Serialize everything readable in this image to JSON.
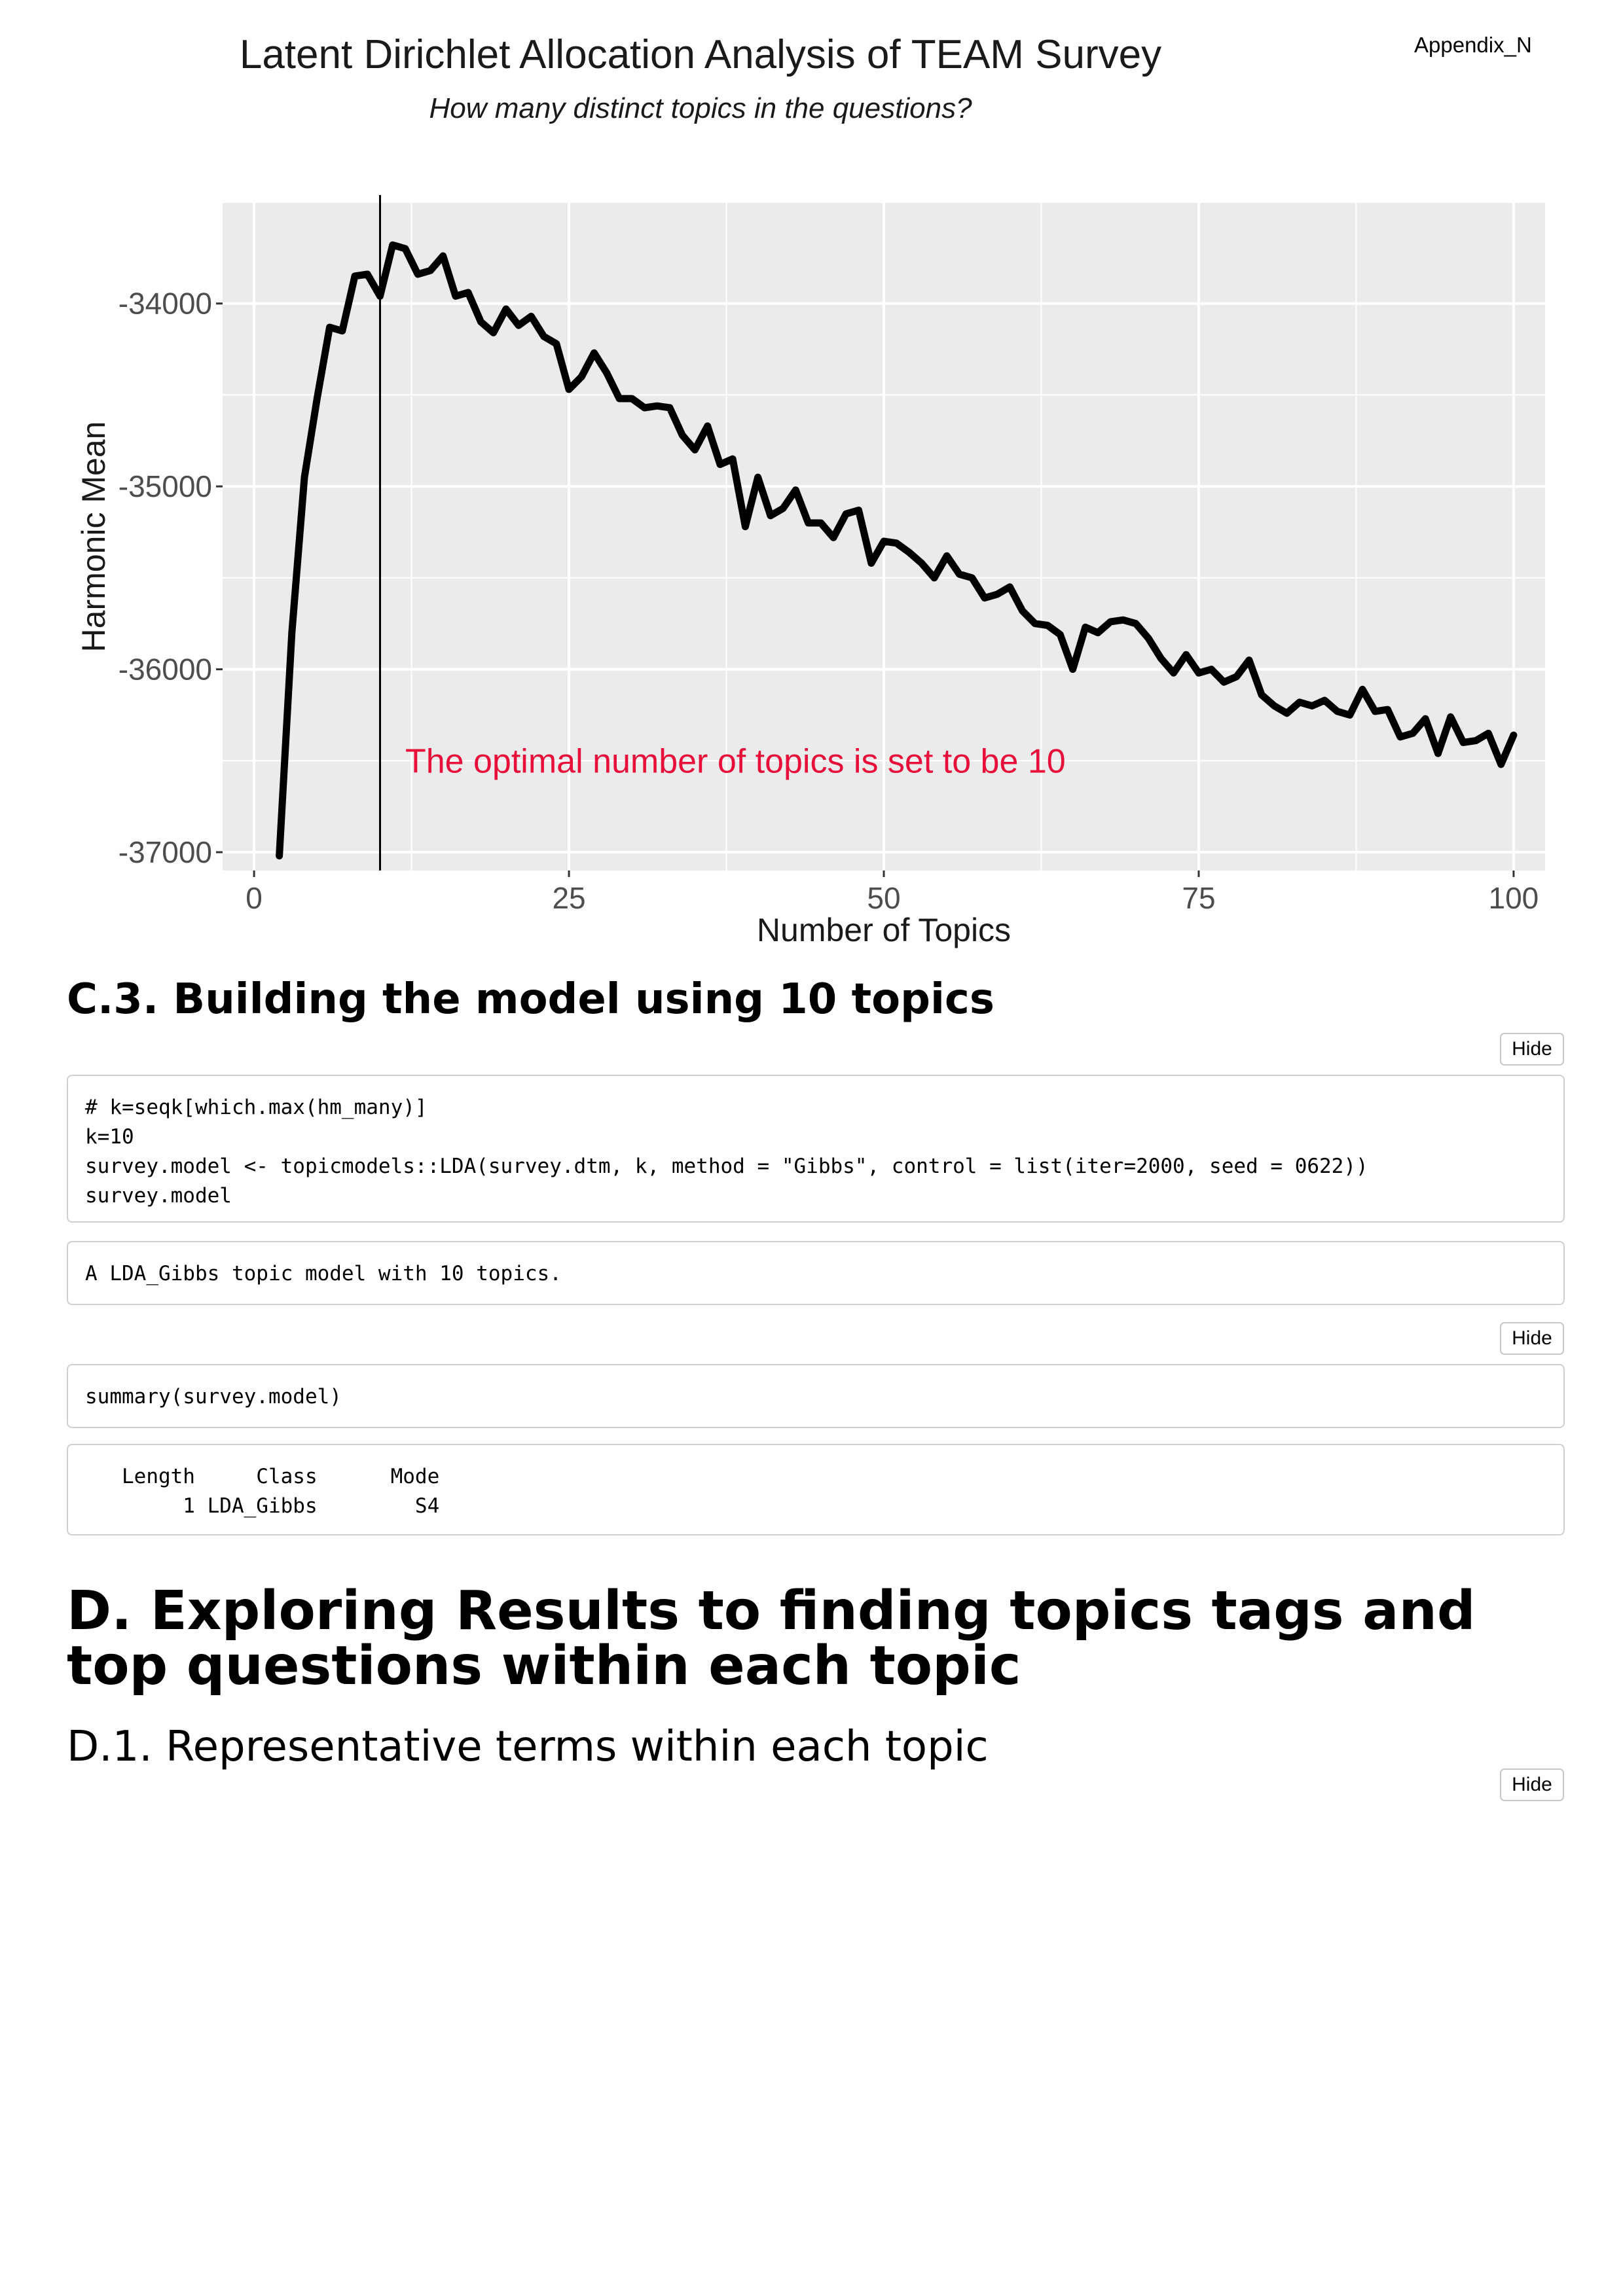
{
  "header": {
    "appendix_label": "Appendix_N"
  },
  "chart_data": {
    "type": "line",
    "title": "Latent Dirichlet Allocation Analysis of TEAM Survey",
    "subtitle": "How many distinct topics in the questions?",
    "xlabel": "Number of Topics",
    "ylabel": "Harmonic Mean",
    "xlim": [
      -2.5,
      102.5
    ],
    "ylim": [
      -37100,
      -33450
    ],
    "x_ticks": [
      0,
      25,
      50,
      75,
      100
    ],
    "x_tick_labels": [
      "0",
      "25",
      "50",
      "75",
      "100"
    ],
    "y_ticks": [
      -34000,
      -35000,
      -36000,
      -37000
    ],
    "y_tick_labels": [
      "-34000",
      "-35000",
      "-36000",
      "-37000"
    ],
    "vline_x": 10,
    "annotation": {
      "text": "The optimal number of topics is set to be 10",
      "x": 12,
      "y": -36500,
      "color": "#e8103a"
    },
    "grid": true,
    "panel_background": "#ebebeb",
    "line_color": "#000000",
    "series": [
      {
        "x": [
          2,
          3,
          4,
          5,
          6,
          7,
          8,
          9,
          10,
          11,
          12,
          13,
          14,
          15,
          16,
          17,
          18,
          19,
          20,
          21,
          22,
          23,
          24,
          25,
          26,
          27,
          28,
          29,
          30,
          31,
          32,
          33,
          34,
          35,
          36,
          37,
          38,
          39,
          40,
          41,
          42,
          43,
          44,
          45,
          46,
          47,
          48,
          49,
          50,
          51,
          52,
          53,
          54,
          55,
          56,
          57,
          58,
          59,
          60,
          61,
          62,
          63,
          64,
          65,
          66,
          67,
          68,
          69,
          70,
          71,
          72,
          73,
          74,
          75,
          76,
          77,
          78,
          79,
          80,
          81,
          82,
          83,
          84,
          85,
          86,
          87,
          88,
          89,
          90,
          91,
          92,
          93,
          94,
          95,
          96,
          97,
          98,
          99,
          100
        ],
        "y": [
          -37020,
          -35800,
          -34950,
          -34520,
          -34130,
          -34150,
          -33850,
          -33840,
          -33960,
          -33680,
          -33700,
          -33840,
          -33820,
          -33740,
          -33960,
          -33940,
          -34100,
          -34160,
          -34030,
          -34120,
          -34070,
          -34180,
          -34220,
          -34470,
          -34400,
          -34270,
          -34380,
          -34520,
          -34520,
          -34570,
          -34560,
          -34570,
          -34720,
          -34800,
          -34670,
          -34880,
          -34850,
          -35220,
          -34950,
          -35160,
          -35120,
          -35020,
          -35200,
          -35200,
          -35280,
          -35150,
          -35130,
          -35420,
          -35300,
          -35310,
          -35360,
          -35420,
          -35500,
          -35380,
          -35480,
          -35500,
          -35610,
          -35590,
          -35550,
          -35680,
          -35750,
          -35760,
          -35810,
          -36000,
          -35770,
          -35800,
          -35740,
          -35730,
          -35750,
          -35830,
          -35940,
          -36020,
          -35920,
          -36020,
          -36000,
          -36070,
          -36040,
          -35950,
          -36140,
          -36200,
          -36240,
          -36180,
          -36200,
          -36170,
          -36230,
          -36250,
          -36110,
          -36230,
          -36220,
          -36370,
          -36350,
          -36270,
          -36460,
          -36260,
          -36400,
          -36390,
          -36350,
          -36520,
          -36360
        ]
      }
    ]
  },
  "sections": {
    "c3_heading": "C.3. Building the model using 10 topics",
    "d_heading": "D. Exploring Results to finding topics tags and top questions within each topic",
    "d1_heading": "D.1. Representative terms within each topic"
  },
  "buttons": {
    "hide_label": "Hide"
  },
  "code_blocks": {
    "model_code": "# k=seqk[which.max(hm_many)]\nk=10\nsurvey.model <- topicmodels::LDA(survey.dtm, k, method = \"Gibbs\", control = list(iter=2000, seed = 0622))\nsurvey.model",
    "model_output": "A LDA_Gibbs topic model with 10 topics.",
    "summary_code": "summary(survey.model)",
    "summary_output": "   Length     Class      Mode\n        1 LDA_Gibbs        S4"
  }
}
